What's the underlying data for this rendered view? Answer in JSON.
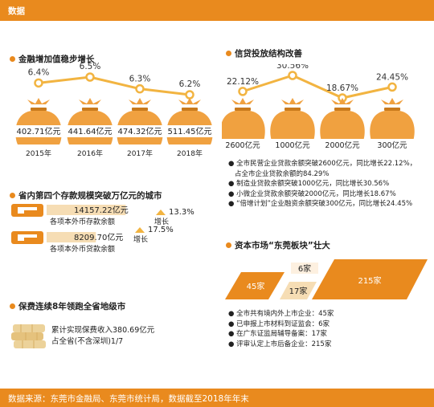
{
  "header": {
    "title": "数据"
  },
  "footer": {
    "source": "数据来源：东莞市金融局、东莞市统计局，数据截至2018年年末"
  },
  "colors": {
    "accent": "#e98a1e",
    "line": "#f2b441",
    "bag": "#f0a140",
    "light": "#f6ddb4"
  },
  "sections": {
    "financial": "金融增加值稳步增长",
    "credit": "信贷投放结构改善",
    "deposit": "省内第四个存款规模突破万亿元的城市",
    "insurance": "保费连续8年领跑全省地级市",
    "capital": "资本市场“东莞板块”壮大"
  },
  "chart_data": [
    {
      "type": "line",
      "title": "金融增加值稳步增长",
      "categories": [
        "2015年",
        "2016年",
        "2017年",
        "2018年"
      ],
      "growth_labels": [
        "6.4%",
        "6.5%",
        "6.3%",
        "6.2%"
      ],
      "growth": [
        6.4,
        6.5,
        6.3,
        6.2
      ],
      "value_labels": [
        "402.71亿元",
        "441.64亿元",
        "474.32亿元",
        "511.45亿元"
      ],
      "values": [
        402.71,
        441.64,
        474.32,
        511.45
      ]
    },
    {
      "type": "line",
      "title": "信贷投放结构改善",
      "categories": [
        "2600亿元",
        "1000亿元",
        "2000亿元",
        "300亿元"
      ],
      "growth_labels": [
        "22.12%",
        "30.56%",
        "18.67%",
        "24.45%"
      ],
      "growth": [
        22.12,
        30.56,
        18.67,
        24.45
      ],
      "values": [
        2600,
        1000,
        2000,
        300
      ]
    },
    {
      "type": "bar",
      "title": "省内第四个存款规模突破万亿元的城市",
      "items": [
        {
          "value_label": "14157.22亿元",
          "value": 14157.22,
          "name": "各项本外币存款余额",
          "growth_label": "13.3%",
          "growth": 13.3,
          "growth_word": "增长"
        },
        {
          "value_label": "8209.70亿元",
          "value": 8209.7,
          "name": "各项本外币贷款余额",
          "growth_label": "17.5%",
          "growth": 17.5,
          "growth_word": "增长"
        }
      ]
    },
    {
      "type": "bar",
      "title": "资本市场“东莞板块”壮大",
      "categories": [
        "45家",
        "6家",
        "17家",
        "215家"
      ],
      "values": [
        45,
        6,
        17,
        215
      ]
    }
  ],
  "credit_notes": [
    "● 全市民营企业贷款余额突破2600亿元，同比增长22.12%，",
    "占全市企业贷款余额的84.29%",
    "● 制造业贷款余额突破1000亿元，同比增长30.56%",
    "● 小微企业贷款余额突破2000亿元，同比增长18.67%",
    "● “倍增计划”企业融资余额突破300亿元，同比增长24.45%"
  ],
  "insurance": {
    "line1": "累计实现保费收入380.69亿元",
    "line2": "占全省(不含深圳)1/7"
  },
  "capital_notes": [
    "● 全市共有境内外上市企业：45家",
    "● 已申报上市材料到证监会：6家",
    "● 在广东证监局辅导备案：17家",
    "● 评审认定上市后备企业：215家"
  ]
}
